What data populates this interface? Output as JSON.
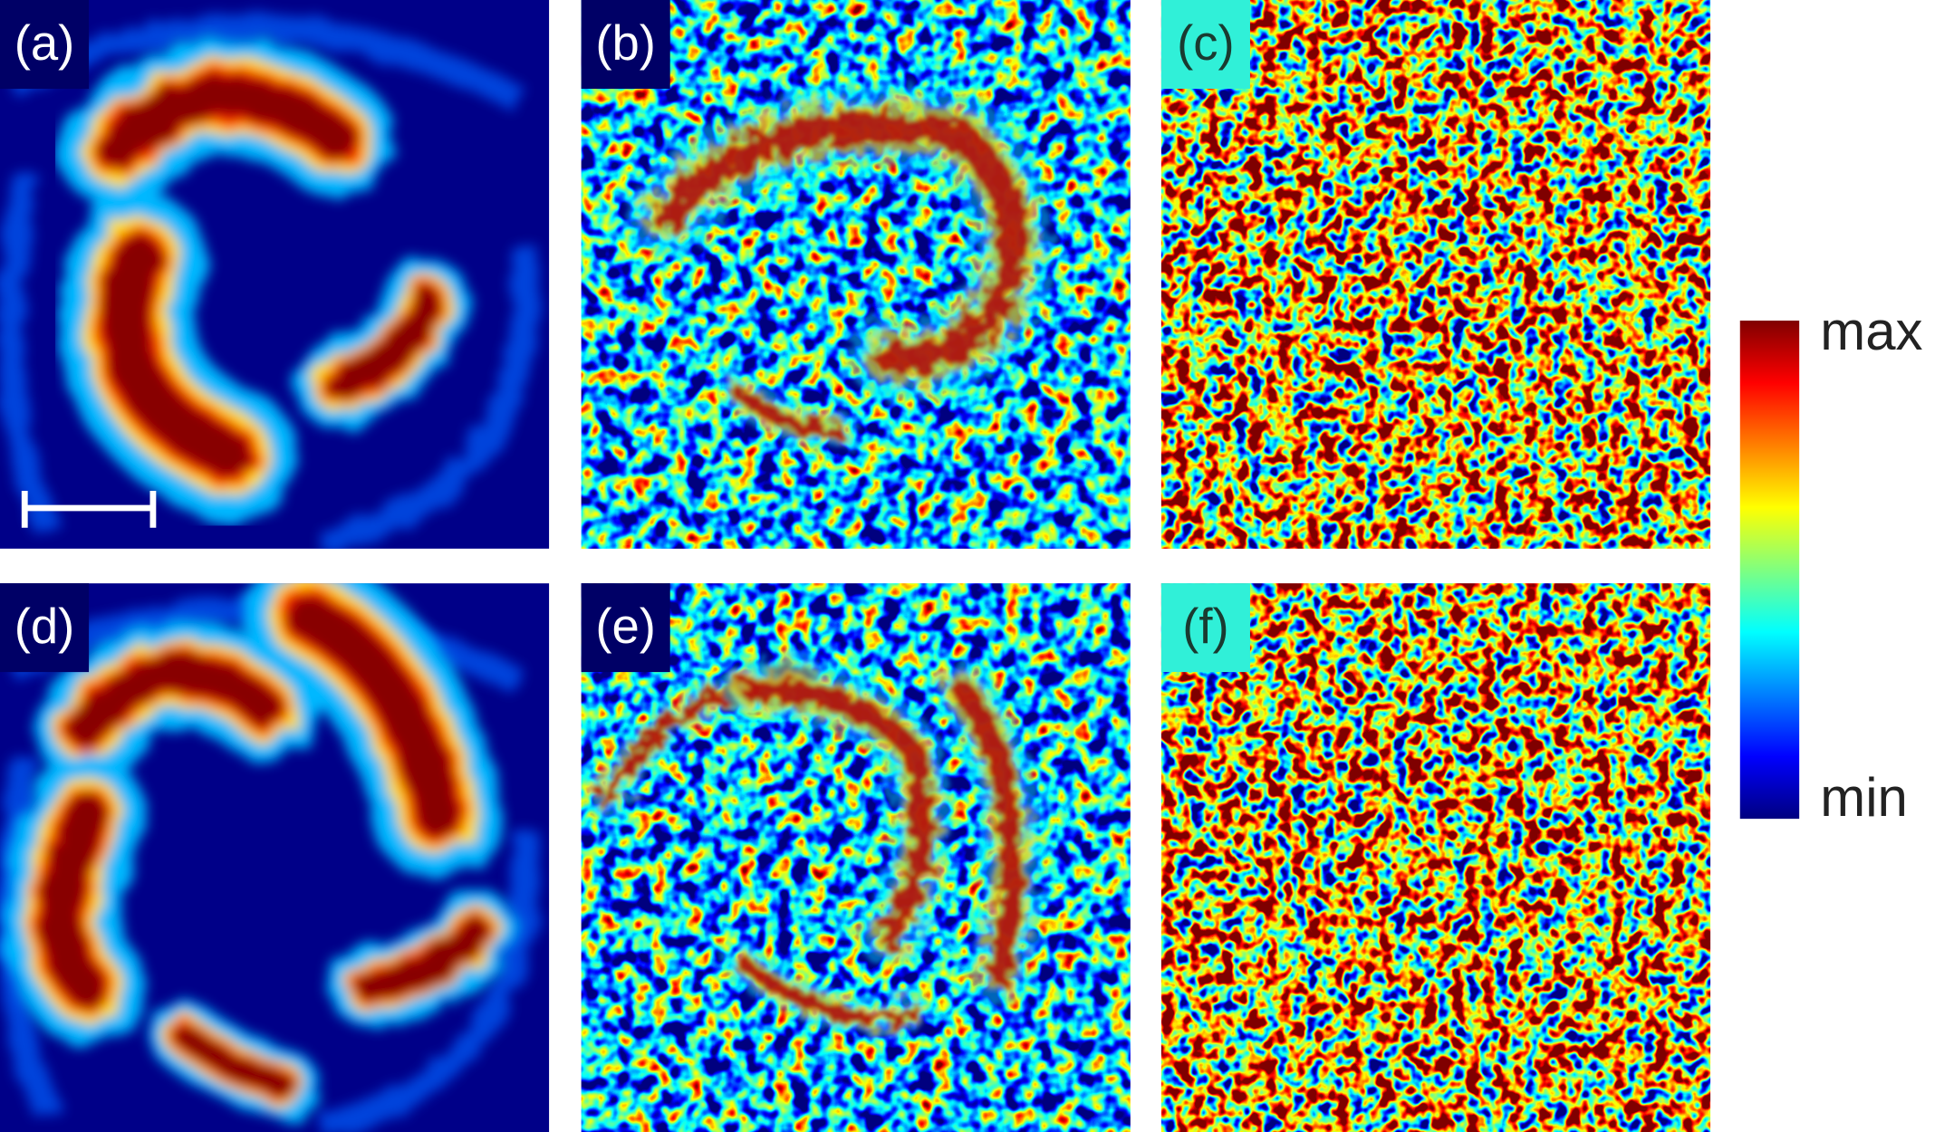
{
  "panels": [
    {
      "label": "(a)"
    },
    {
      "label": "(b)"
    },
    {
      "label": "(c)"
    },
    {
      "label": "(d)"
    },
    {
      "label": "(e)"
    },
    {
      "label": "(f)"
    }
  ],
  "colorbar": {
    "max": "max",
    "min": "min"
  }
}
